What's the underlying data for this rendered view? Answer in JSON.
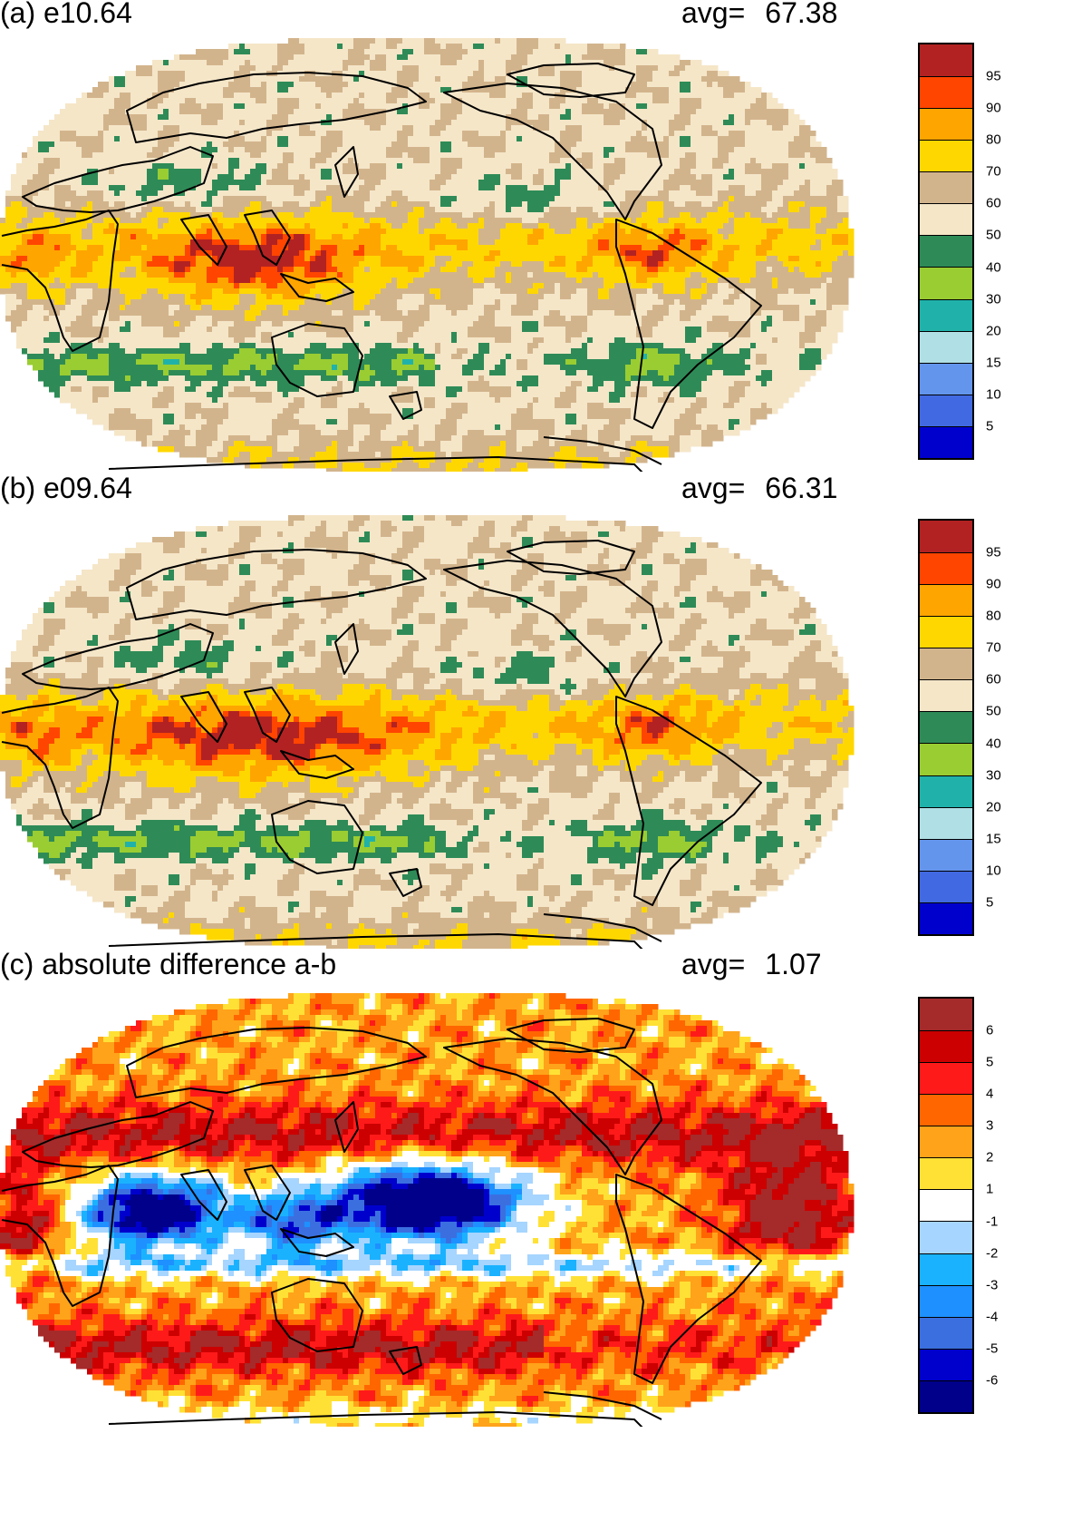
{
  "panels": [
    {
      "id": "a",
      "title": "(a) e10.64",
      "avg_label": "avg=",
      "avg_value": "67.38",
      "colorbar": {
        "labels": [
          "95",
          "90",
          "80",
          "70",
          "60",
          "50",
          "40",
          "30",
          "20",
          "15",
          "10",
          "5"
        ],
        "colors": [
          "#b22222",
          "#ff4500",
          "#ffa500",
          "#ffd700",
          "#d2b48c",
          "#f5e6c8",
          "#2e8b57",
          "#9acd32",
          "#20b2aa",
          "#b0e0e6",
          "#6495ed",
          "#4169e1",
          "#0000cd"
        ]
      },
      "field": "tropical_high"
    },
    {
      "id": "b",
      "title": "(b) e09.64",
      "avg_label": "avg=",
      "avg_value": "66.31",
      "colorbar": {
        "labels": [
          "95",
          "90",
          "80",
          "70",
          "60",
          "50",
          "40",
          "30",
          "20",
          "15",
          "10",
          "5"
        ],
        "colors": [
          "#b22222",
          "#ff4500",
          "#ffa500",
          "#ffd700",
          "#d2b48c",
          "#f5e6c8",
          "#2e8b57",
          "#9acd32",
          "#20b2aa",
          "#b0e0e6",
          "#6495ed",
          "#4169e1",
          "#0000cd"
        ]
      },
      "field": "tropical_high_pacific"
    },
    {
      "id": "c",
      "title": "(c) absolute difference a-b",
      "avg_label": "avg=",
      "avg_value": "1.07",
      "colorbar": {
        "labels": [
          "6",
          "5",
          "4",
          "3",
          "2",
          "1",
          "-1",
          "-2",
          "-3",
          "-4",
          "-5",
          "-6"
        ],
        "colors": [
          "#a52a2a",
          "#cc0000",
          "#ff1a1a",
          "#ff6600",
          "#ffa31a",
          "#ffe135",
          "#ffffff",
          "#a6d5ff",
          "#1ab2ff",
          "#1e90ff",
          "#3b6fe0",
          "#0000cd",
          "#00008b"
        ]
      },
      "field": "difference"
    }
  ]
}
